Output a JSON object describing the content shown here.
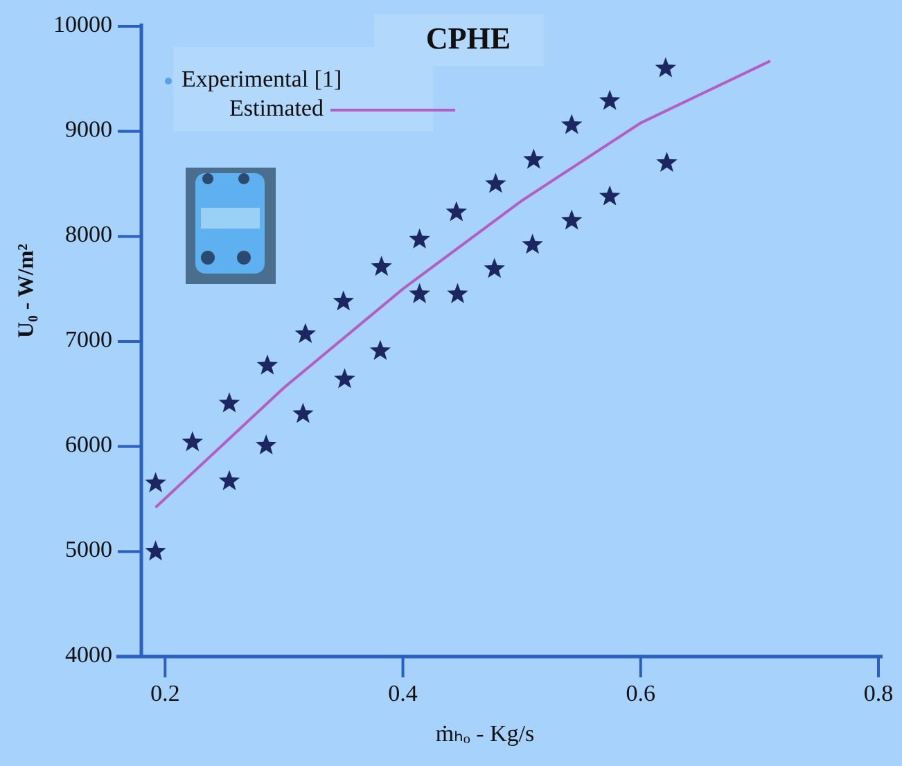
{
  "chart_data": {
    "type": "scatter",
    "title": "CPHE",
    "x_label": "ṁₕₒ - Kg/s",
    "y_label": "U₀ - W/m²",
    "xlim": [
      0.18,
      0.8
    ],
    "xticks": [
      0.2,
      0.4,
      0.6,
      0.8
    ],
    "ylim": [
      4000,
      10000
    ],
    "yticks": [
      4000,
      5000,
      6000,
      7000,
      8000,
      9000,
      10000
    ],
    "grid": false,
    "legend": "upper left",
    "series": [
      {
        "name": "Experimental [1]",
        "color": "#1c2660",
        "mode": "markers",
        "x": [
          0.192,
          0.192,
          0.223,
          0.254,
          0.254,
          0.286,
          0.285,
          0.318,
          0.316,
          0.35,
          0.351,
          0.382,
          0.381,
          0.414,
          0.414,
          0.445,
          0.446,
          0.478,
          0.477,
          0.51,
          0.509,
          0.542,
          0.542,
          0.574,
          0.574,
          0.621,
          0.622
        ],
        "values": [
          5650,
          5000,
          6040,
          6410,
          5670,
          6770,
          6010,
          7070,
          6310,
          7380,
          6640,
          7710,
          6910,
          7970,
          7450,
          8230,
          7450,
          8500,
          7690,
          8730,
          7920,
          9060,
          8150,
          9290,
          8380,
          9600,
          8700
        ]
      },
      {
        "name": "Estimated",
        "color": "#b35ec4",
        "mode": "line",
        "x": [
          0.192,
          0.3,
          0.4,
          0.5,
          0.6,
          0.709
        ],
        "values": [
          5420,
          6560,
          7500,
          8340,
          9080,
          9670
        ]
      }
    ]
  }
}
